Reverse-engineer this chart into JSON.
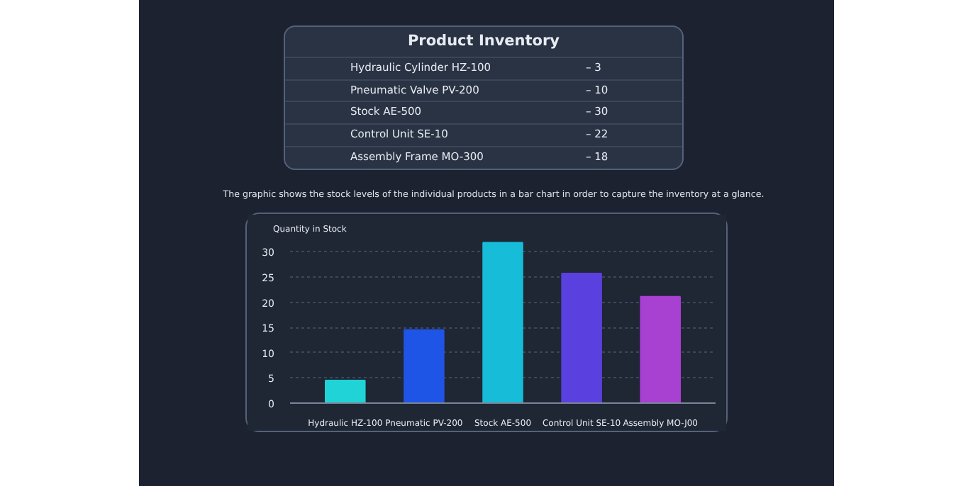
{
  "chart_data": {
    "type": "bar",
    "title": "Product Inventory",
    "annotations": [
      "Hydraulic Cylinder HZ-100",
      "– 3",
      "Pneumatic Valve PV-200",
      "– 10",
      "Stock AE-500",
      "– 30",
      "Control Unit SE-10",
      "– 22",
      "Assembly Frame MO-300",
      "– 18",
      "The graphic shows the stock levels of the individual products in a bar chart in order to capture the inventory at a glance."
    ],
    "ylabel": "Quantity in Stock",
    "categories": [
      "Hydraulic HZ-100",
      "Pneumatic PV-200",
      "Stock AE-500",
      "Control Unit SE-10",
      "Assembly MO-J00"
    ],
    "values": [
      4.5,
      14.5,
      31.8,
      25.7,
      21.1
    ],
    "colors": [
      "#1fd3d6",
      "#1f55e6",
      "#16bcd8",
      "#5b40e0",
      "#a840d2"
    ],
    "ylim": [
      0,
      32
    ],
    "yticks": [
      0,
      5,
      10,
      15,
      20,
      25,
      30
    ],
    "grid": "y"
  }
}
